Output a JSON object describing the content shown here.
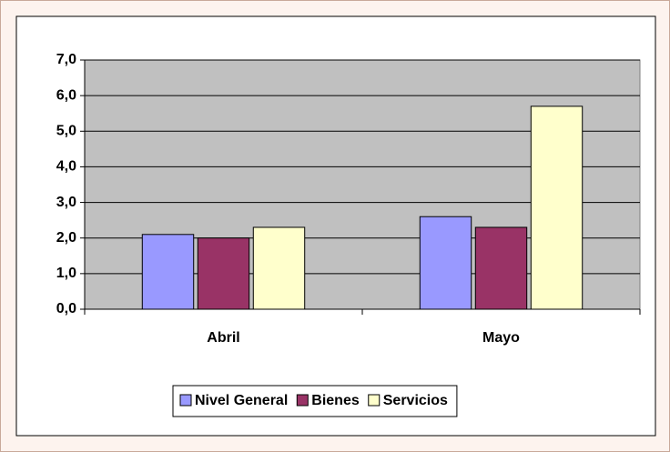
{
  "chart_data": {
    "type": "bar",
    "categories": [
      "Abril",
      "Mayo"
    ],
    "series": [
      {
        "name": "Nivel General",
        "color": "#9999ff",
        "values": [
          2.1,
          2.6
        ]
      },
      {
        "name": "Bienes",
        "color": "#993366",
        "values": [
          2.0,
          2.3
        ]
      },
      {
        "name": "Servicios",
        "color": "#ffffcc",
        "values": [
          2.3,
          5.7
        ]
      }
    ],
    "ylim": [
      0,
      7
    ],
    "yticks": [
      {
        "value": 0,
        "label": "0,0"
      },
      {
        "value": 1,
        "label": "1,0"
      },
      {
        "value": 2,
        "label": "2,0"
      },
      {
        "value": 3,
        "label": "3,0"
      },
      {
        "value": 4,
        "label": "4,0"
      },
      {
        "value": 5,
        "label": "5,0"
      },
      {
        "value": 6,
        "label": "6,0"
      },
      {
        "value": 7,
        "label": "7,0"
      }
    ],
    "grid": true,
    "legend": "bottom",
    "plot_background": "#c0c0c0"
  }
}
